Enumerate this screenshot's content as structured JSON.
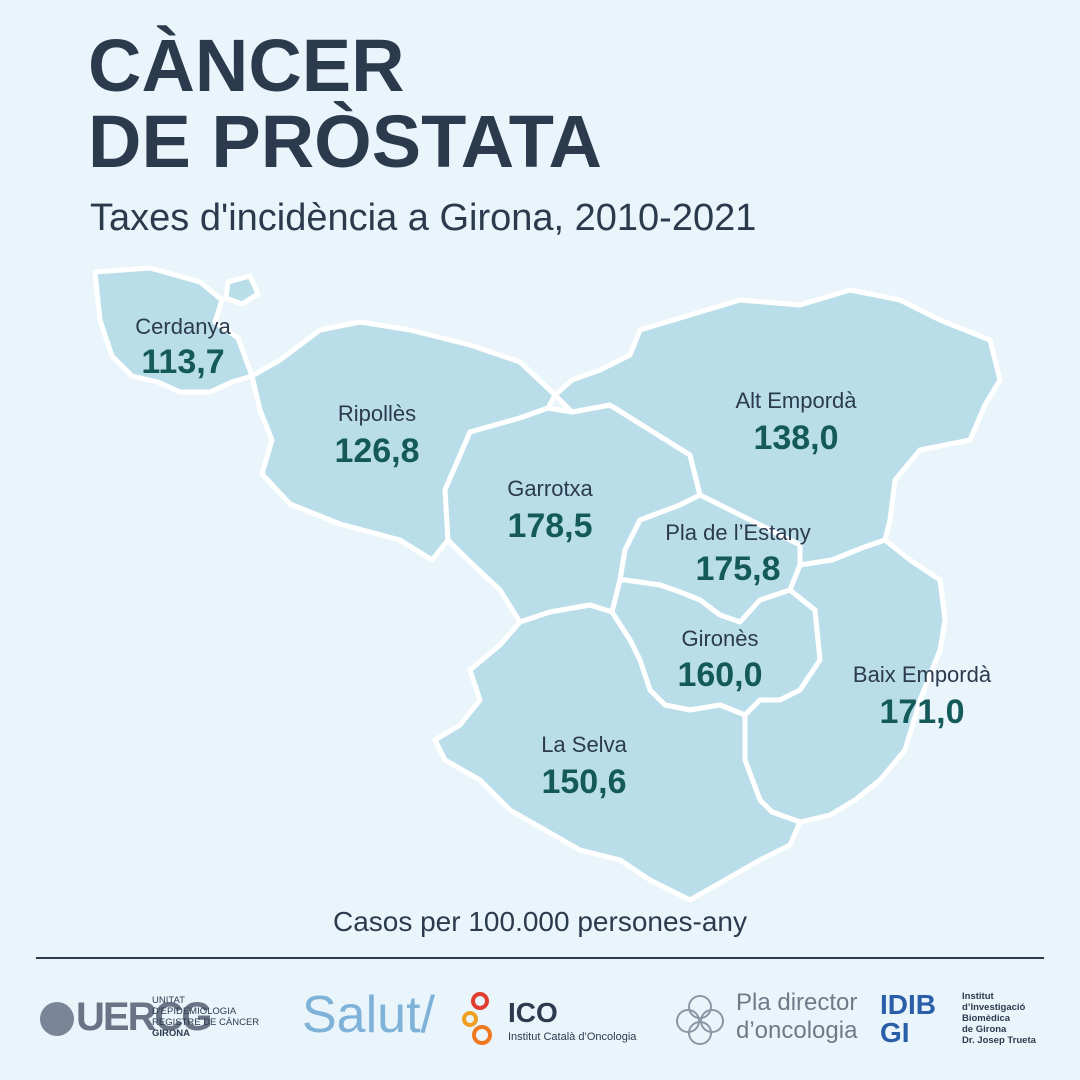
{
  "title": {
    "line1": "CÀNCER",
    "line2": "DE PRÒSTATA"
  },
  "subtitle": "Taxes d'incidència a Girona, 2010-2021",
  "map": {
    "fill_color": "#b9deea",
    "label_color": "#2c3a4e",
    "value_color": "#145a5a",
    "regions": [
      {
        "name": "Cerdanya",
        "value": "113,7"
      },
      {
        "name": "Ripollès",
        "value": "126,8"
      },
      {
        "name": "Garrotxa",
        "value": "178,5"
      },
      {
        "name": "Alt Empordà",
        "value": "138,0"
      },
      {
        "name": "Pla de l’Estany",
        "value": "175,8"
      },
      {
        "name": "Gironès",
        "value": "160,0"
      },
      {
        "name": "Baix Empordà",
        "value": "171,0"
      },
      {
        "name": "La Selva",
        "value": "150,6"
      }
    ]
  },
  "unit_label": "Casos per 100.000 persones-any",
  "logos": {
    "uercg": {
      "mark": "UERCG",
      "line1": "UNITAT",
      "line2": "D'EPIDEMIOLOGIA",
      "line3": "REGISTRE DE CÀNCER",
      "line4": "GIRONA"
    },
    "salut": "Salut/",
    "ico": {
      "word": "ICO",
      "sub": "Institut Català d’Oncologia"
    },
    "pla": {
      "line1": "Pla director",
      "line2": "d’oncologia"
    },
    "idibgi": {
      "mark1": "IDIB",
      "mark2": "GI",
      "line1": "Institut",
      "line2": "d’Investigació",
      "line3": "Biomèdica",
      "line4": "de Girona",
      "line5": "Dr. Josep Trueta"
    }
  }
}
